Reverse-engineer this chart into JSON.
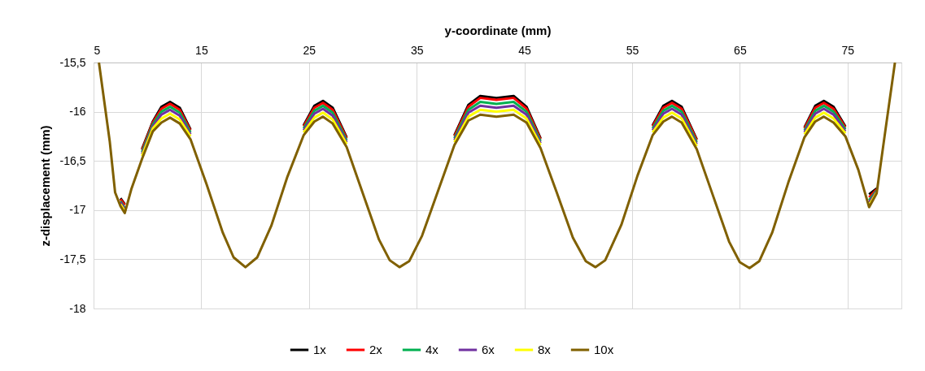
{
  "chart_data": {
    "type": "line",
    "xlabel": "y-coordinate (mm)",
    "ylabel": "z-displacement (mm)",
    "xlim": [
      5,
      80
    ],
    "xticks": [
      5,
      15,
      25,
      35,
      45,
      55,
      65,
      75
    ],
    "ylim": [
      -18,
      -15.5
    ],
    "yticks": [
      {
        "value": -18,
        "label": "-18"
      },
      {
        "value": -17.5,
        "label": "-17,5"
      },
      {
        "value": -17,
        "label": "-17"
      },
      {
        "value": -16.5,
        "label": "-16,5"
      },
      {
        "value": -16,
        "label": "-16"
      },
      {
        "value": -15.5,
        "label": "-15,5"
      }
    ],
    "grid": true,
    "legend": "bottom",
    "marker": "none",
    "line_style": "solid",
    "x": [
      5.5,
      6.5,
      7.0,
      7.5,
      7.9,
      8.5,
      9.5,
      10.5,
      11.3,
      12.1,
      13,
      14,
      15.5,
      17,
      18,
      19.1,
      20.2,
      21.5,
      23,
      24.5,
      25.5,
      26.3,
      27.2,
      28.5,
      30,
      31.5,
      32.5,
      33.4,
      34.3,
      35.5,
      37,
      38.5,
      39.8,
      40.9,
      42.4,
      44.0,
      45.2,
      46.5,
      48,
      49.5,
      50.7,
      51.6,
      52.5,
      54,
      55.5,
      56.9,
      57.9,
      58.7,
      59.6,
      61,
      62.5,
      64,
      65,
      65.9,
      66.8,
      68,
      69.5,
      71,
      72,
      72.8,
      73.7,
      74.8,
      76,
      77.0,
      77.7,
      78.5,
      79.4
    ],
    "series": [
      {
        "name": "1x",
        "color": "#000000",
        "values": [
          null,
          null,
          null,
          -16.88,
          -16.94,
          null,
          -16.38,
          -16.1,
          -15.95,
          -15.9,
          -15.96,
          -16.18,
          null,
          null,
          null,
          null,
          null,
          null,
          null,
          -16.14,
          -15.94,
          -15.89,
          -15.96,
          -16.26,
          null,
          null,
          null,
          null,
          null,
          null,
          null,
          -16.24,
          -15.93,
          -15.84,
          -15.86,
          -15.84,
          -15.95,
          -16.27,
          null,
          null,
          null,
          null,
          null,
          null,
          null,
          -16.14,
          -15.94,
          -15.89,
          -15.95,
          -16.28,
          null,
          null,
          null,
          null,
          null,
          null,
          null,
          -16.16,
          -15.94,
          -15.89,
          -15.95,
          -16.15,
          null,
          -16.84,
          -16.78,
          null,
          null
        ]
      },
      {
        "name": "2x",
        "color": "#ff0000",
        "values": [
          null,
          null,
          null,
          -16.89,
          -16.95,
          null,
          -16.39,
          -16.11,
          -15.97,
          -15.92,
          -15.98,
          -16.19,
          null,
          null,
          null,
          null,
          null,
          null,
          null,
          -16.15,
          -15.96,
          -15.91,
          -15.98,
          -16.27,
          null,
          null,
          null,
          null,
          null,
          null,
          null,
          -16.25,
          -15.95,
          -15.86,
          -15.88,
          -15.86,
          -15.97,
          -16.28,
          null,
          null,
          null,
          null,
          null,
          null,
          null,
          -16.15,
          -15.96,
          -15.91,
          -15.97,
          -16.29,
          null,
          null,
          null,
          null,
          null,
          null,
          null,
          -16.17,
          -15.96,
          -15.91,
          -15.97,
          -16.16,
          null,
          -16.87,
          -16.79,
          null,
          null
        ]
      },
      {
        "name": "4x",
        "color": "#00b050",
        "values": [
          null,
          null,
          null,
          -16.91,
          -16.98,
          null,
          -16.41,
          -16.13,
          -16.0,
          -15.95,
          -16.01,
          -16.21,
          null,
          null,
          null,
          null,
          null,
          null,
          null,
          -16.17,
          -15.99,
          -15.94,
          -16.01,
          -16.29,
          null,
          null,
          null,
          null,
          null,
          null,
          null,
          -16.27,
          -15.98,
          -15.9,
          -15.92,
          -15.9,
          -16.0,
          -16.3,
          null,
          null,
          null,
          null,
          null,
          null,
          null,
          -16.17,
          -15.99,
          -15.94,
          -16.0,
          -16.31,
          null,
          null,
          null,
          null,
          null,
          null,
          null,
          -16.19,
          -15.99,
          -15.94,
          -16.0,
          -16.18,
          null,
          -16.9,
          -16.8,
          null,
          null
        ]
      },
      {
        "name": "6x",
        "color": "#7030a0",
        "values": [
          null,
          null,
          null,
          -16.92,
          -16.99,
          null,
          -16.43,
          -16.15,
          -16.03,
          -15.98,
          -16.04,
          -16.23,
          null,
          null,
          null,
          null,
          null,
          null,
          null,
          -16.19,
          -16.02,
          -15.97,
          -16.04,
          -16.31,
          null,
          null,
          null,
          null,
          null,
          null,
          null,
          -16.29,
          -16.01,
          -15.94,
          -15.96,
          -15.94,
          -16.03,
          -16.32,
          null,
          null,
          null,
          null,
          null,
          null,
          null,
          -16.19,
          -16.02,
          -15.97,
          -16.03,
          -16.33,
          null,
          null,
          null,
          null,
          null,
          null,
          null,
          -16.21,
          -16.02,
          -15.97,
          -16.03,
          -16.2,
          null,
          -16.92,
          -16.81,
          null,
          null
        ]
      },
      {
        "name": "8x",
        "color": "#ffff00",
        "values": [
          null,
          null,
          null,
          -16.94,
          -17.01,
          null,
          -16.45,
          -16.17,
          -16.07,
          -16.02,
          -16.08,
          -16.25,
          null,
          null,
          null,
          null,
          null,
          null,
          null,
          -16.21,
          -16.06,
          -16.01,
          -16.08,
          -16.33,
          null,
          null,
          null,
          null,
          null,
          null,
          null,
          -16.31,
          -16.05,
          -15.98,
          -16.0,
          -15.98,
          -16.07,
          -16.34,
          null,
          null,
          null,
          null,
          null,
          null,
          null,
          -16.21,
          -16.06,
          -16.01,
          -16.07,
          -16.35,
          null,
          null,
          null,
          null,
          null,
          null,
          null,
          -16.23,
          -16.06,
          -16.01,
          -16.07,
          -16.22,
          null,
          -16.95,
          -16.82,
          null,
          null
        ]
      },
      {
        "name": "10x",
        "color": "#806000",
        "values": [
          -15.5,
          -16.3,
          -16.82,
          -16.96,
          -17.03,
          -16.79,
          -16.48,
          -16.2,
          -16.11,
          -16.06,
          -16.12,
          -16.28,
          -16.74,
          -17.23,
          -17.48,
          -17.58,
          -17.48,
          -17.16,
          -16.66,
          -16.24,
          -16.1,
          -16.05,
          -16.12,
          -16.36,
          -16.83,
          -17.3,
          -17.51,
          -17.58,
          -17.52,
          -17.26,
          -16.8,
          -16.34,
          -16.09,
          -16.03,
          -16.05,
          -16.03,
          -16.11,
          -16.37,
          -16.82,
          -17.28,
          -17.52,
          -17.58,
          -17.51,
          -17.15,
          -16.65,
          -16.24,
          -16.1,
          -16.05,
          -16.11,
          -16.38,
          -16.85,
          -17.32,
          -17.53,
          -17.59,
          -17.52,
          -17.23,
          -16.72,
          -16.26,
          -16.1,
          -16.05,
          -16.11,
          -16.25,
          -16.59,
          -16.97,
          -16.83,
          -16.2,
          -15.5
        ]
      }
    ]
  }
}
